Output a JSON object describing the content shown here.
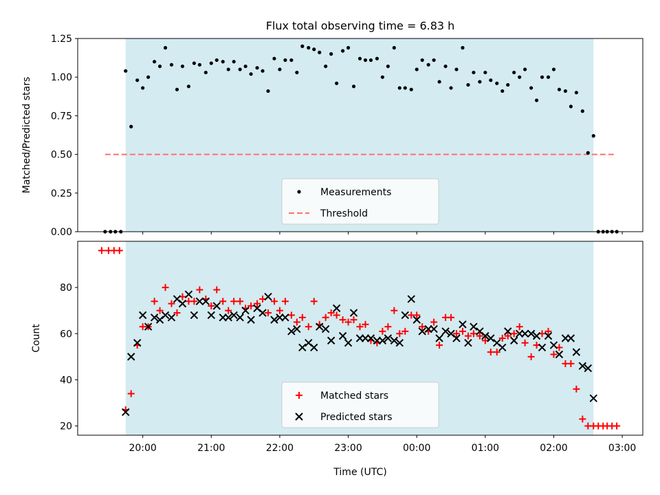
{
  "chart_data": [
    {
      "type": "scatter",
      "title": "Flux total observing time = 6.83 h",
      "ylabel": "Matched/Predicted stars",
      "xlabel": "",
      "ylim": [
        0,
        1.25
      ],
      "xlim_hours": [
        19.05,
        27.3
      ],
      "yticks": [
        "0.00",
        "0.25",
        "0.50",
        "0.75",
        "1.00",
        "1.25"
      ],
      "shaded_span_hours": [
        19.75,
        26.58
      ],
      "shaded_color": "#d4ebf1",
      "grid": false,
      "legend_position": "lower-center",
      "series": [
        {
          "name": "Measurements",
          "marker": "dot",
          "color": "#000000",
          "x": [
            19.45,
            19.53,
            19.6,
            19.68,
            19.75,
            19.83,
            19.92,
            20.0,
            20.08,
            20.17,
            20.25,
            20.33,
            20.42,
            20.5,
            20.58,
            20.67,
            20.75,
            20.83,
            20.92,
            21.0,
            21.08,
            21.17,
            21.25,
            21.33,
            21.42,
            21.5,
            21.58,
            21.67,
            21.75,
            21.83,
            21.92,
            22.0,
            22.08,
            22.17,
            22.25,
            22.33,
            22.42,
            22.5,
            22.58,
            22.67,
            22.75,
            22.83,
            22.92,
            23.0,
            23.08,
            23.17,
            23.25,
            23.33,
            23.42,
            23.5,
            23.58,
            23.67,
            23.75,
            23.83,
            23.92,
            24.0,
            24.08,
            24.17,
            24.25,
            24.33,
            24.42,
            24.5,
            24.58,
            24.67,
            24.75,
            24.83,
            24.92,
            25.0,
            25.08,
            25.17,
            25.25,
            25.33,
            25.42,
            25.5,
            25.58,
            25.67,
            25.75,
            25.83,
            25.92,
            26.0,
            26.08,
            26.17,
            26.25,
            26.33,
            26.42,
            26.5,
            26.58,
            26.65,
            26.72,
            26.78,
            26.85,
            26.92
          ],
          "y": [
            0,
            0,
            0,
            0,
            1.04,
            0.68,
            0.98,
            0.93,
            1.0,
            1.1,
            1.07,
            1.19,
            1.08,
            0.92,
            1.07,
            0.94,
            1.09,
            1.08,
            1.03,
            1.09,
            1.11,
            1.1,
            1.05,
            1.1,
            1.05,
            1.07,
            1.02,
            1.06,
            1.04,
            0.91,
            1.12,
            1.05,
            1.11,
            1.11,
            1.03,
            1.2,
            1.19,
            1.18,
            1.16,
            1.07,
            1.15,
            0.96,
            1.17,
            1.19,
            0.94,
            1.12,
            1.11,
            1.11,
            1.12,
            1.0,
            1.07,
            1.19,
            0.93,
            0.93,
            0.92,
            1.05,
            1.11,
            1.08,
            1.11,
            0.97,
            1.07,
            0.93,
            1.05,
            1.19,
            0.95,
            1.03,
            0.97,
            1.03,
            0.98,
            0.96,
            0.91,
            0.95,
            1.03,
            1.0,
            1.05,
            0.93,
            0.85,
            1.0,
            1.0,
            1.05,
            0.92,
            0.91,
            0.81,
            0.9,
            0.78,
            0.51,
            0.62,
            0,
            0,
            0,
            0,
            0
          ]
        },
        {
          "name": "Threshold",
          "style": "dashed",
          "color": "#ff6f6f",
          "x": [
            19.45,
            26.9
          ],
          "y": [
            0.5,
            0.5
          ]
        }
      ]
    },
    {
      "type": "scatter",
      "title": "",
      "ylabel": "Count",
      "xlabel": "Time (UTC)",
      "ylim": [
        16,
        100
      ],
      "xlim_hours": [
        19.05,
        27.3
      ],
      "yticks": [
        "20",
        "40",
        "60",
        "80"
      ],
      "xticks_hours": [
        20,
        21,
        22,
        23,
        24,
        25,
        26,
        27
      ],
      "xtick_labels": [
        "20:00",
        "21:00",
        "22:00",
        "23:00",
        "00:00",
        "01:00",
        "02:00",
        "03:00"
      ],
      "shaded_span_hours": [
        19.75,
        26.58
      ],
      "shaded_color": "#d4ebf1",
      "grid": false,
      "legend_position": "lower-center",
      "series": [
        {
          "name": "Matched stars",
          "marker": "plus",
          "color": "#ff0000",
          "x": [
            19.4,
            19.5,
            19.58,
            19.66,
            19.75,
            19.83,
            19.92,
            20.0,
            20.08,
            20.17,
            20.25,
            20.33,
            20.42,
            20.5,
            20.58,
            20.67,
            20.75,
            20.83,
            20.92,
            21.0,
            21.08,
            21.17,
            21.25,
            21.33,
            21.42,
            21.5,
            21.58,
            21.67,
            21.75,
            21.83,
            21.92,
            22.0,
            22.08,
            22.17,
            22.25,
            22.33,
            22.42,
            22.5,
            22.58,
            22.67,
            22.75,
            22.83,
            22.92,
            23.0,
            23.08,
            23.17,
            23.25,
            23.33,
            23.42,
            23.5,
            23.58,
            23.67,
            23.75,
            23.83,
            23.92,
            24.0,
            24.08,
            24.17,
            24.25,
            24.33,
            24.42,
            24.5,
            24.58,
            24.67,
            24.75,
            24.83,
            24.92,
            25.0,
            25.08,
            25.17,
            25.25,
            25.33,
            25.42,
            25.5,
            25.58,
            25.67,
            25.75,
            25.83,
            25.92,
            26.0,
            26.08,
            26.17,
            26.25,
            26.33,
            26.42,
            26.5,
            26.58,
            26.65,
            26.72,
            26.78,
            26.85,
            26.92
          ],
          "y": [
            96,
            96,
            96,
            96,
            27,
            34,
            55,
            63,
            63,
            74,
            70,
            80,
            73,
            69,
            76,
            74,
            74,
            79,
            75,
            72,
            79,
            74,
            70,
            74,
            74,
            71,
            72,
            73,
            75,
            69,
            74,
            70,
            74,
            68,
            65,
            67,
            63,
            74,
            64,
            67,
            69,
            68,
            66,
            65,
            66,
            63,
            64,
            57,
            56,
            61,
            63,
            70,
            60,
            61,
            68,
            68,
            63,
            61,
            65,
            55,
            67,
            67,
            60,
            61,
            59,
            60,
            59,
            57,
            52,
            52,
            58,
            59,
            60,
            63,
            56,
            50,
            55,
            60,
            61,
            51,
            54,
            47,
            47,
            36,
            23,
            20,
            20,
            20,
            20,
            20,
            20,
            20
          ]
        },
        {
          "name": "Predicted stars",
          "marker": "x",
          "color": "#000000",
          "x": [
            19.75,
            19.83,
            19.92,
            20.0,
            20.08,
            20.17,
            20.25,
            20.33,
            20.42,
            20.5,
            20.58,
            20.67,
            20.75,
            20.83,
            20.92,
            21.0,
            21.08,
            21.17,
            21.25,
            21.33,
            21.42,
            21.5,
            21.58,
            21.67,
            21.75,
            21.83,
            21.92,
            22.0,
            22.08,
            22.17,
            22.25,
            22.33,
            22.42,
            22.5,
            22.58,
            22.67,
            22.75,
            22.83,
            22.92,
            23.0,
            23.08,
            23.17,
            23.25,
            23.33,
            23.42,
            23.5,
            23.58,
            23.67,
            23.75,
            23.83,
            23.92,
            24.0,
            24.08,
            24.17,
            24.25,
            24.33,
            24.42,
            24.5,
            24.58,
            24.67,
            24.75,
            24.83,
            24.92,
            25.0,
            25.08,
            25.17,
            25.25,
            25.33,
            25.42,
            25.5,
            25.58,
            25.67,
            25.75,
            25.83,
            25.92,
            26.0,
            26.08,
            26.17,
            26.25,
            26.33,
            26.42,
            26.5,
            26.58
          ],
          "y": [
            26,
            50,
            56,
            68,
            63,
            67,
            66,
            68,
            67,
            75,
            73,
            77,
            68,
            74,
            74,
            68,
            72,
            67,
            67,
            68,
            67,
            70,
            66,
            71,
            69,
            76,
            66,
            67,
            67,
            61,
            62,
            54,
            56,
            54,
            63,
            62,
            57,
            71,
            59,
            56,
            69,
            58,
            58,
            58,
            57,
            57,
            58,
            57,
            56,
            68,
            75,
            66,
            61,
            62,
            62,
            58,
            61,
            60,
            58,
            64,
            56,
            63,
            61,
            59,
            58,
            56,
            54,
            61,
            57,
            60,
            60,
            60,
            59,
            54,
            59,
            55,
            51,
            58,
            58,
            52,
            46,
            45,
            32
          ]
        }
      ]
    }
  ]
}
